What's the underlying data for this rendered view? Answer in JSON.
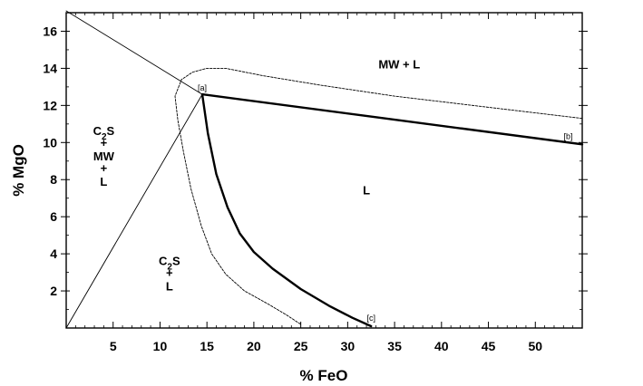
{
  "chart_data": {
    "type": "line",
    "xlabel": "% FeO",
    "ylabel": "% MgO",
    "xlim": [
      0,
      55
    ],
    "ylim": [
      0,
      17
    ],
    "x_ticks": [
      5,
      10,
      15,
      20,
      25,
      30,
      35,
      40,
      45,
      50
    ],
    "y_ticks": [
      2,
      4,
      6,
      8,
      10,
      12,
      14,
      16
    ],
    "regions": [
      {
        "name": "c2s-mw-l",
        "lines": [
          "C",
          "2",
          "S",
          "+",
          "MW",
          "+",
          "L"
        ],
        "x": 4,
        "y": 10.4
      },
      {
        "name": "mw-l",
        "lines": [
          "MW + L"
        ],
        "x": 35.5,
        "y": 14
      },
      {
        "name": "l",
        "lines": [
          "L"
        ],
        "x": 32,
        "y": 7.2
      },
      {
        "name": "c2s-l",
        "lines": [
          "C",
          "2",
          "S",
          "+",
          "L"
        ],
        "x": 11,
        "y": 3.4
      }
    ],
    "points": [
      {
        "label": "[a]",
        "x": 14.5,
        "y": 12.6
      },
      {
        "label": "[b]",
        "x": 53.5,
        "y": 10.0
      },
      {
        "label": "[c]",
        "x": 32.5,
        "y": 0.2
      }
    ],
    "series": [
      {
        "style": "thick",
        "points": [
          [
            14.5,
            12.6
          ],
          [
            55,
            9.9
          ]
        ]
      },
      {
        "style": "thick",
        "points": [
          [
            14.5,
            12.6
          ],
          [
            15.1,
            10.5
          ],
          [
            16,
            8.3
          ],
          [
            17.2,
            6.5
          ],
          [
            18.5,
            5.1
          ],
          [
            20,
            4.1
          ],
          [
            22,
            3.2
          ],
          [
            25,
            2.1
          ],
          [
            28,
            1.2
          ],
          [
            30.5,
            0.55
          ],
          [
            32.5,
            0.1
          ]
        ]
      },
      {
        "style": "thin",
        "points": [
          [
            0,
            17.1
          ],
          [
            14.5,
            12.6
          ]
        ]
      },
      {
        "style": "thin",
        "points": [
          [
            0,
            0
          ],
          [
            14.5,
            12.6
          ]
        ]
      },
      {
        "style": "dashed",
        "points": [
          [
            55,
            11.3
          ],
          [
            45,
            11.9
          ],
          [
            35,
            12.5
          ],
          [
            27,
            13.1
          ],
          [
            21,
            13.6
          ],
          [
            17,
            14.0
          ],
          [
            15,
            14.0
          ],
          [
            13.5,
            13.8
          ],
          [
            12.3,
            13.4
          ],
          [
            11.6,
            12.5
          ],
          [
            11.9,
            11.2
          ],
          [
            12.5,
            9.5
          ],
          [
            13.3,
            7.5
          ],
          [
            14.4,
            5.5
          ],
          [
            15.5,
            4.0
          ],
          [
            17,
            2.9
          ],
          [
            19,
            2.0
          ],
          [
            21.5,
            1.3
          ],
          [
            23.5,
            0.7
          ],
          [
            25,
            0.2
          ]
        ]
      }
    ]
  }
}
